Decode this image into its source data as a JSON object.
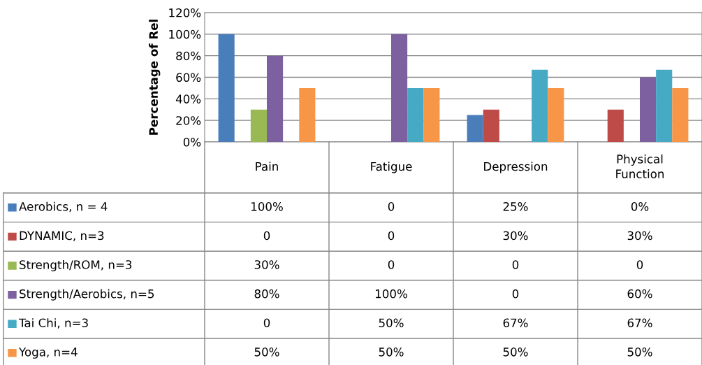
{
  "chart_data": {
    "type": "bar",
    "ylabel": "Percentage of Rel",
    "categories": [
      "Pain",
      "Fatigue",
      "Depression",
      "Physical\nFunction"
    ],
    "series": [
      {
        "name": "Aerobics, n = 4",
        "color": "#4a7ebb",
        "values": [
          100,
          0,
          25,
          0
        ],
        "value_labels": [
          "100%",
          "0",
          "25%",
          "0%"
        ]
      },
      {
        "name": "DYNAMIC, n=3",
        "color": "#be4b48",
        "values": [
          0,
          0,
          30,
          30
        ],
        "value_labels": [
          "0",
          "0",
          "30%",
          "30%"
        ]
      },
      {
        "name": "Strength/ROM, n=3",
        "color": "#98b954",
        "values": [
          30,
          0,
          0,
          0
        ],
        "value_labels": [
          "30%",
          "0",
          "0",
          "0"
        ]
      },
      {
        "name": "Strength/Aerobics, n=5",
        "color": "#7d60a0",
        "values": [
          80,
          100,
          0,
          60
        ],
        "value_labels": [
          "80%",
          "100%",
          "0",
          "60%"
        ]
      },
      {
        "name": "Tai Chi, n=3",
        "color": "#46aac5",
        "values": [
          0,
          50,
          67,
          67
        ],
        "value_labels": [
          "0",
          "50%",
          "67%",
          "67%"
        ]
      },
      {
        "name": "Yoga, n=4",
        "color": "#f79646",
        "values": [
          50,
          50,
          50,
          50
        ],
        "value_labels": [
          "50%",
          "50%",
          "50%",
          "50%"
        ]
      }
    ],
    "ylim": [
      0,
      120
    ],
    "yticks": [
      {
        "value": 0,
        "label": "0%"
      },
      {
        "value": 20,
        "label": "20%"
      },
      {
        "value": 40,
        "label": "40%"
      },
      {
        "value": 60,
        "label": "60%"
      },
      {
        "value": 80,
        "label": "80%"
      },
      {
        "value": 100,
        "label": "100%"
      },
      {
        "value": 120,
        "label": "120%"
      }
    ],
    "grid": "y",
    "legend": "bottom left"
  }
}
